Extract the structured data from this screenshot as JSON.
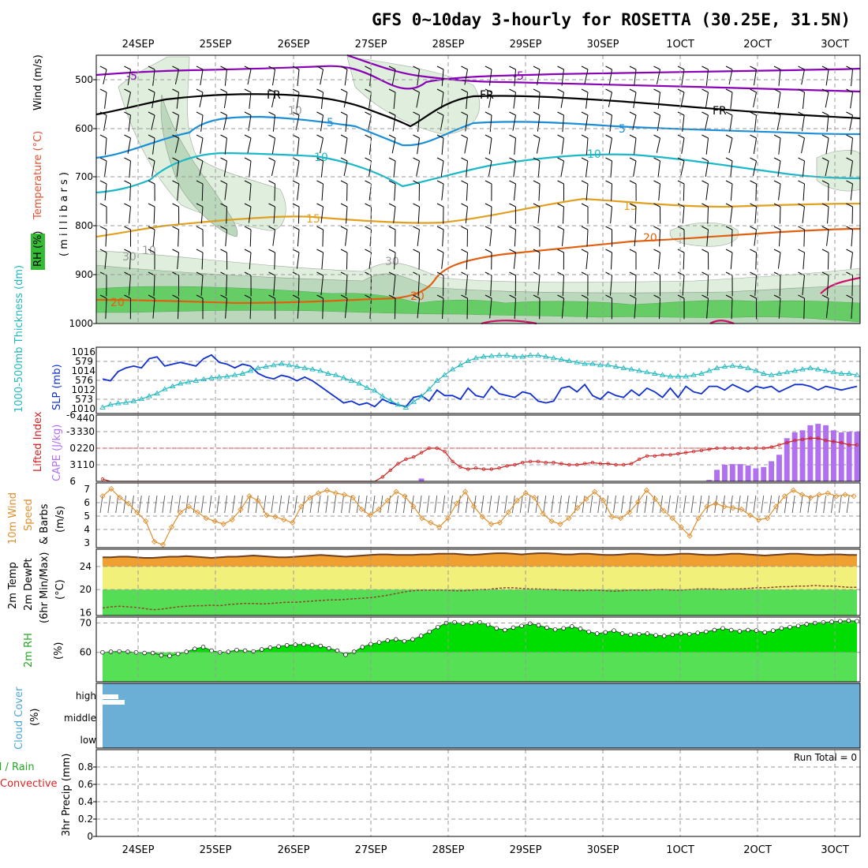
{
  "title": "GFS 0~10day 3-hourly for ROSETTA (30.25E, 31.5N)",
  "dates_top": [
    "24SEP",
    "25SEP",
    "26SEP",
    "27SEP",
    "28SEP",
    "29SEP",
    "30SEP",
    "1OCT",
    "2OCT",
    "3OCT"
  ],
  "dates_bottom": [
    "24SEP",
    "25SEP",
    "26SEP",
    "27SEP",
    "28SEP",
    "29SEP",
    "30SEP",
    "1OCT",
    "2OCT",
    "3OCT"
  ],
  "colors": {
    "purple": "#8a00b8",
    "black": "#000000",
    "blue": "#1b8ed8",
    "teal": "#1ab8c8",
    "orange": "#e0a020",
    "dkorange": "#e06010",
    "magenta": "#d0106a",
    "rh_light": "#dfeedd",
    "rh_mid": "#bcd8bc",
    "rh_green": "#66cc66",
    "slp": "#1030d0",
    "thick": "#22b8c0",
    "li": "#cc2222",
    "cape": "#b070f0",
    "wind": "#e09030",
    "temp": "#704020",
    "temp_fill": "#f0a030",
    "dew_fill_y": "#f0f07a",
    "dew_fill_g": "#55dd55",
    "rh2m": "#00dd00",
    "cloud": "#6baed6"
  },
  "panels": {
    "upper": {
      "ylabel_parts": [
        "RH (%)",
        "Temperature (°C)",
        "Wind (m/s)"
      ],
      "ylabel_unit": "( m i l l i b a r s )",
      "yticks": [
        "500",
        "600",
        "700",
        "800",
        "900",
        "1000"
      ],
      "contour_labels": {
        "m5": "-5",
        "m5b": "-5",
        "fr1": "FR",
        "fr2": "FR",
        "fr3": "FR",
        "p5a": "5",
        "p5b": "5",
        "p10a": "10",
        "p10b": "10",
        "p15a": "15",
        "p15b": "15",
        "p20a": "20",
        "p20b": "20",
        "p20c": "20",
        "rh10a": "10",
        "rh10b": "10",
        "rh30": "30",
        "rh30b": "30"
      }
    },
    "slp": {
      "ylabel_left": "1000-500mb Thickness (dm)",
      "ylabel_right": "SLP (mb)",
      "left_ticks": [
        "579",
        "576",
        "573"
      ],
      "right_ticks": [
        "1016",
        "1014",
        "1012",
        "1010"
      ]
    },
    "li": {
      "ylabel_left": "Lifted Index",
      "ylabel_right": "CAPE (J/kg)",
      "left_ticks": [
        "-6",
        "-3",
        "0",
        "3",
        "6"
      ],
      "right_ticks": [
        "440",
        "330",
        "220",
        "110"
      ]
    },
    "wind": {
      "ylabel": [
        "10m Wind",
        "Speed",
        "& Barbs",
        "(m/s)"
      ],
      "ticks": [
        "7",
        "6",
        "5",
        "4",
        "3"
      ]
    },
    "temp": {
      "ylabel": [
        "2m Temp",
        "2m DewPt",
        "(6hr Min/Max)",
        "(°C)"
      ],
      "ticks": [
        "24",
        "20",
        "16"
      ]
    },
    "rh": {
      "ylabel": [
        "2m RH",
        "(%)"
      ],
      "ticks": [
        "70",
        "60"
      ]
    },
    "cloud": {
      "ylabel": [
        "Cloud Cover",
        "(%)"
      ],
      "levels": [
        "high",
        "middle",
        "low"
      ]
    },
    "precip": {
      "ylabel_parts": [
        "Total / Rain",
        "Convective",
        "3hr Precip (mm)"
      ],
      "ticks": [
        "0.8",
        "0.6",
        "0.4",
        "0.2",
        "0"
      ],
      "run_total": "Run Total = 0"
    }
  },
  "chart_data": [
    {
      "type": "line",
      "name": "SLP",
      "ylabel": "SLP (mb)",
      "ylim": [
        1010,
        1016.5
      ],
      "x_step_hours": 3,
      "values": [
        1013.4,
        1013.2,
        1014.2,
        1014.6,
        1014.8,
        1014.6,
        1015.6,
        1015.8,
        1014.8,
        1015.0,
        1015.2,
        1015.0,
        1014.8,
        1015.6,
        1016.0,
        1015.2,
        1015.0,
        1014.6,
        1015.0,
        1014.8,
        1014.0,
        1013.6,
        1013.4,
        1013.8,
        1013.6,
        1013.2,
        1013.6,
        1013.2,
        1012.6,
        1012.0,
        1011.4,
        1010.8,
        1011.0,
        1010.6,
        1010.8,
        1010.4,
        1011.2,
        1010.8,
        1010.6,
        1010.4,
        1011.4,
        1011.6,
        1011.0,
        1012.2,
        1011.6,
        1011.6,
        1011.2,
        1012.4,
        1011.6,
        1011.4,
        1012.6,
        1011.8,
        1011.6,
        1011.4,
        1012.0,
        1011.8,
        1011.0,
        1010.8,
        1011.0,
        1012.4,
        1012.6,
        1012.0,
        1012.8,
        1011.6,
        1011.2,
        1012.0,
        1011.6,
        1011.4,
        1012.2,
        1011.6,
        1012.4,
        1012.0,
        1011.4,
        1012.4,
        1011.4,
        1012.6,
        1012.0,
        1011.8,
        1012.6,
        1012.6,
        1012.2,
        1012.8,
        1012.4,
        1012.0,
        1012.6,
        1012.4,
        1012.6,
        1012.0,
        1012.4,
        1012.8,
        1012.8,
        1012.6,
        1012.2,
        1012.6,
        1012.4,
        1012.2,
        1012.4,
        1012.6
      ]
    },
    {
      "type": "line",
      "name": "Thickness",
      "ylabel": "1000-500mb Thickness (dm)",
      "ylim": [
        572,
        580.5
      ],
      "values": [
        572.4,
        572.8,
        573.0,
        573.1,
        573.3,
        573.6,
        574.0,
        574.4,
        575.0,
        575.4,
        575.8,
        576.0,
        576.2,
        576.4,
        576.6,
        576.7,
        576.8,
        577.0,
        577.2,
        577.6,
        578.0,
        578.2,
        578.4,
        578.6,
        578.4,
        578.2,
        578.0,
        577.8,
        577.6,
        577.2,
        577.0,
        576.6,
        576.2,
        575.8,
        575.2,
        574.8,
        574.0,
        573.4,
        572.8,
        572.4,
        573.2,
        574.0,
        575.0,
        576.2,
        577.0,
        577.8,
        578.4,
        579.0,
        579.4,
        579.6,
        579.7,
        579.8,
        579.8,
        579.6,
        579.6,
        579.8,
        579.8,
        579.6,
        579.4,
        579.2,
        579.0,
        578.8,
        578.6,
        578.6,
        578.4,
        578.4,
        578.2,
        578.0,
        577.8,
        577.6,
        577.4,
        577.2,
        577.0,
        576.8,
        576.8,
        576.8,
        577.0,
        577.2,
        577.6,
        578.0,
        578.2,
        578.3,
        578.2,
        578.0,
        577.6,
        577.2,
        577.0,
        577.2,
        577.4,
        577.6,
        577.8,
        578.0,
        577.8,
        577.6,
        577.4,
        577.2,
        577.2,
        577.0
      ]
    },
    {
      "type": "line",
      "name": "Lifted Index",
      "ylabel": "Lifted Index",
      "ylim": [
        6,
        -6
      ],
      "values": [
        5.6,
        6.0,
        6.0,
        6.0,
        6.0,
        6.0,
        6.0,
        6.0,
        6.0,
        6.0,
        6.0,
        6.0,
        6.0,
        6.0,
        6.0,
        6.0,
        6.0,
        6.0,
        6.0,
        6.0,
        6.0,
        6.0,
        6.0,
        6.0,
        6.0,
        6.0,
        6.0,
        6.0,
        6.0,
        6.0,
        6.0,
        6.0,
        6.0,
        6.0,
        6.0,
        6.0,
        5.2,
        4.0,
        2.8,
        2.0,
        1.6,
        0.8,
        0.0,
        0.0,
        0.6,
        2.4,
        3.4,
        3.8,
        3.6,
        3.8,
        3.8,
        3.6,
        3.2,
        3.0,
        2.6,
        2.4,
        2.4,
        2.6,
        2.6,
        2.8,
        3.0,
        3.0,
        2.8,
        2.6,
        2.8,
        2.8,
        3.0,
        3.0,
        2.8,
        2.0,
        1.4,
        1.4,
        1.2,
        1.2,
        1.0,
        0.8,
        0.6,
        0.4,
        0.2,
        0.0,
        0.0,
        0.0,
        0.0,
        0.0,
        0.0,
        0.0,
        -0.2,
        -0.6,
        -1.0,
        -1.4,
        -1.6,
        -1.8,
        -1.8,
        -1.4,
        -1.2,
        -1.0,
        -0.6,
        -0.6
      ]
    },
    {
      "type": "bar",
      "name": "CAPE",
      "ylabel": "CAPE (J/kg)",
      "ylim": [
        0,
        450
      ],
      "values": [
        0,
        0,
        0,
        0,
        0,
        0,
        0,
        0,
        0,
        0,
        0,
        0,
        0,
        0,
        0,
        0,
        0,
        0,
        0,
        0,
        0,
        0,
        0,
        0,
        0,
        0,
        0,
        0,
        0,
        0,
        0,
        0,
        0,
        0,
        0,
        0,
        0,
        0,
        0,
        0,
        0,
        20,
        0,
        0,
        0,
        0,
        0,
        0,
        0,
        0,
        0,
        0,
        0,
        0,
        0,
        0,
        0,
        0,
        0,
        0,
        0,
        0,
        0,
        0,
        0,
        0,
        0,
        0,
        0,
        0,
        0,
        0,
        0,
        0,
        0,
        0,
        0,
        0,
        10,
        80,
        115,
        120,
        120,
        110,
        90,
        100,
        140,
        185,
        300,
        340,
        355,
        390,
        400,
        390,
        355,
        340,
        345,
        345
      ]
    },
    {
      "type": "line",
      "name": "10m Wind Speed",
      "ylabel": "10m Wind Speed (m/s)",
      "ylim": [
        2.8,
        7.2
      ],
      "values": [
        6.3,
        6.8,
        6.2,
        5.8,
        5.2,
        4.6,
        3.2,
        3.0,
        4.2,
        5.2,
        5.6,
        5.2,
        4.8,
        4.6,
        4.4,
        4.7,
        5.4,
        6.3,
        6.0,
        5.0,
        4.9,
        4.7,
        4.5,
        5.6,
        6.2,
        6.5,
        6.7,
        6.5,
        6.4,
        6.2,
        5.4,
        5.0,
        5.4,
        6.0,
        6.6,
        6.3,
        5.6,
        4.8,
        4.5,
        4.2,
        4.8,
        5.8,
        6.6,
        5.6,
        4.9,
        4.4,
        4.5,
        5.2,
        6.0,
        6.5,
        6.2,
        5.1,
        4.6,
        4.4,
        4.8,
        5.5,
        6.1,
        6.6,
        6.0,
        4.9,
        4.8,
        5.2,
        5.9,
        6.7,
        6.1,
        5.3,
        4.8,
        4.2,
        3.6,
        4.8,
        5.6,
        5.8,
        5.6,
        5.5,
        5.4,
        5.0,
        4.7,
        4.8,
        5.6,
        6.3,
        6.7,
        6.4,
        6.2,
        6.4,
        6.5,
        6.3,
        6.4,
        6.3
      ]
    },
    {
      "type": "area",
      "name": "2m Temp",
      "ylabel": "2m Temp (°C)",
      "ylim": [
        15.5,
        27
      ],
      "values": [
        25.6,
        25.6,
        25.7,
        25.7,
        25.6,
        25.5,
        25.5,
        25.6,
        25.7,
        25.7,
        25.8,
        25.7,
        25.6,
        25.5,
        25.6,
        25.7,
        25.7,
        25.8,
        25.9,
        25.8,
        25.7,
        25.6,
        25.6,
        25.7,
        25.8,
        25.9,
        26.0,
        25.9,
        25.8,
        25.7,
        25.8,
        25.9,
        26.0,
        26.1,
        26.1,
        26.0,
        26.0,
        26.0,
        26.1,
        26.1,
        26.2,
        26.2,
        26.2,
        26.1,
        26.0,
        26.1,
        26.2,
        26.3,
        26.3,
        26.2,
        26.1,
        26.2,
        26.3,
        26.3,
        26.2,
        26.1,
        26.1,
        26.2,
        26.2,
        26.1,
        26.0,
        26.0,
        26.1,
        26.2,
        26.2,
        26.1,
        26.0,
        26.0,
        26.1,
        26.2,
        26.2,
        26.1,
        26.0,
        26.0,
        26.1,
        26.2,
        26.2,
        26.1,
        26.0,
        25.9,
        26.0,
        26.1,
        26.2,
        26.2,
        26.1,
        26.0,
        26.0,
        26.1,
        26.1,
        26.0,
        26.0
      ]
    },
    {
      "type": "area",
      "name": "2m DewPt",
      "ylabel": "2m DewPt (°C)",
      "ylim": [
        15.5,
        27
      ],
      "values": [
        16.8,
        17.0,
        17.1,
        17.0,
        16.9,
        16.7,
        16.5,
        16.6,
        16.8,
        17.0,
        17.1,
        17.2,
        17.2,
        17.3,
        17.2,
        17.4,
        17.5,
        17.6,
        17.6,
        17.5,
        17.6,
        17.7,
        17.8,
        17.8,
        17.9,
        18.0,
        18.1,
        18.2,
        18.2,
        18.3,
        18.4,
        18.5,
        18.6,
        18.8,
        19.0,
        19.3,
        19.6,
        19.8,
        19.9,
        19.9,
        19.9,
        19.9,
        19.8,
        19.8,
        19.9,
        20.0,
        20.0,
        20.2,
        20.3,
        20.3,
        20.2,
        20.1,
        20.1,
        20.0,
        20.0,
        19.9,
        19.9,
        19.8,
        19.9,
        19.9,
        19.8,
        19.7,
        19.8,
        19.9,
        19.9,
        19.9,
        20.0,
        20.0,
        19.9,
        19.9,
        20.0,
        20.1,
        20.1,
        20.1,
        20.0,
        20.1,
        20.1,
        20.2,
        20.3,
        20.3,
        20.4,
        20.5,
        20.5,
        20.6,
        20.6,
        20.7,
        20.6,
        20.6,
        20.5,
        20.4,
        20.4
      ]
    },
    {
      "type": "area",
      "name": "2m RH",
      "ylabel": "2m RH (%)",
      "ylim": [
        50,
        72
      ],
      "values": [
        60.0,
        60.2,
        60.3,
        60.2,
        60.0,
        59.8,
        59.8,
        59.0,
        58.8,
        59.5,
        60.2,
        61.2,
        61.8,
        60.6,
        60.0,
        60.2,
        60.8,
        60.6,
        60.3,
        61.0,
        61.6,
        62.0,
        62.4,
        62.6,
        62.7,
        62.5,
        62.2,
        61.4,
        60.6,
        59.2,
        60.2,
        61.8,
        62.8,
        63.4,
        64.0,
        64.4,
        63.8,
        64.4,
        65.6,
        67.0,
        68.6,
        70.0,
        70.2,
        69.8,
        70.0,
        70.2,
        69.4,
        68.2,
        67.6,
        68.4,
        69.0,
        69.8,
        69.2,
        68.4,
        67.8,
        68.2,
        68.8,
        68.0,
        67.0,
        66.4,
        66.8,
        67.4,
        66.4,
        66.0,
        66.2,
        66.4,
        65.8,
        65.6,
        66.0,
        66.4,
        66.2,
        66.6,
        67.0,
        67.6,
        68.2,
        67.6,
        67.2,
        67.6,
        67.4,
        66.8,
        67.4,
        68.2,
        68.6,
        69.0,
        69.6,
        70.0,
        70.2,
        70.4,
        70.6,
        70.8,
        70.6
      ]
    }
  ]
}
